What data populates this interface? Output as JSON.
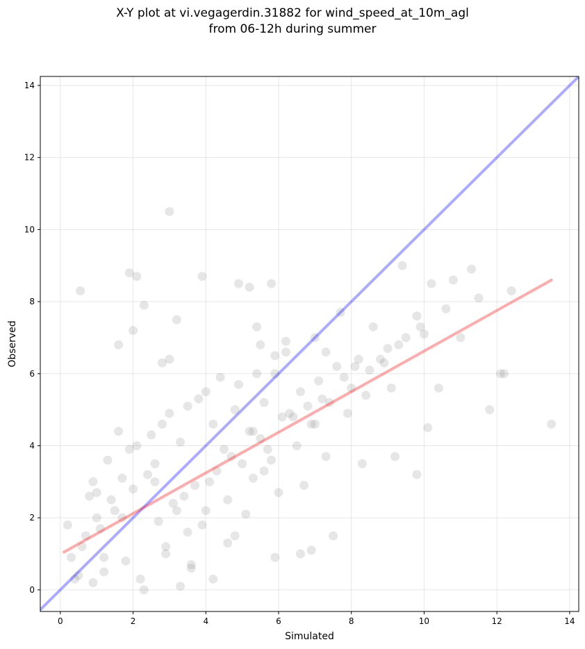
{
  "chart_data": {
    "type": "scatter",
    "title_line1": "X-Y plot at vi.vegagerdin.31882 for wind_speed_at_10m_agl",
    "title_line2": "from 06-12h during summer",
    "xlabel": "Simulated",
    "ylabel": "Observed",
    "xlim": [
      -0.55,
      14.25
    ],
    "ylim": [
      -0.6,
      14.25
    ],
    "x_ticks": [
      0,
      2,
      4,
      6,
      8,
      10,
      12,
      14
    ],
    "y_ticks": [
      0,
      2,
      4,
      6,
      8,
      10,
      12,
      14
    ],
    "grid": true,
    "point_color": "#808080",
    "series": [
      {
        "name": "",
        "x": [
          0.55,
          3.0,
          1.9,
          2.1,
          3.9,
          1.6,
          2.0,
          2.3,
          2.8,
          3.2,
          3.0,
          4.9,
          5.2,
          5.4,
          5.5,
          5.8,
          5.9,
          6.2,
          7.0,
          7.3,
          7.7,
          8.1,
          8.6,
          8.9,
          9.4,
          9.8,
          10.2,
          10.6,
          10.8,
          11.3,
          11.5,
          11.0,
          12.1,
          12.4,
          12.2,
          11.8,
          13.5,
          9.8,
          9.2,
          10.1,
          10.4,
          6.6,
          7.5,
          6.9,
          8.3,
          1.0,
          0.6,
          1.4,
          0.2,
          1.7,
          2.6,
          3.3,
          4.2,
          4.8,
          5.3,
          5.6,
          5.9,
          6.1,
          6.6,
          7.2,
          7.8,
          8.2,
          4.0,
          3.5,
          2.9,
          1.2,
          0.9,
          0.4,
          0.3,
          0.7,
          1.5,
          2.0,
          2.4,
          3.1,
          3.7,
          4.3,
          4.5,
          5.0,
          5.5,
          6.3,
          6.9,
          7.4,
          8.0,
          8.5,
          9.0,
          9.5,
          3.6,
          4.6,
          5.1,
          6.0,
          2.2,
          1.8,
          1.1,
          0.8,
          2.7,
          3.4,
          4.1,
          4.7,
          5.2,
          5.7,
          6.4,
          6.8,
          7.1,
          7.6,
          8.8,
          9.3,
          9.9,
          10.0,
          2.5,
          3.0,
          3.8,
          4.4,
          5.4,
          6.2,
          1.3,
          1.6,
          2.1,
          2.6,
          3.2,
          3.9,
          4.6,
          5.3,
          5.8,
          6.5,
          7.0,
          7.9,
          8.4,
          9.1,
          1.0,
          1.9,
          2.8,
          3.5,
          4.0,
          4.9,
          5.6,
          6.7,
          7.3,
          0.5,
          1.2,
          2.3,
          3.3,
          4.2,
          0.9,
          1.7,
          2.9,
          3.6,
          4.8,
          5.9
        ],
        "y": [
          8.3,
          10.5,
          8.8,
          8.7,
          8.7,
          6.8,
          7.2,
          7.9,
          6.3,
          7.5,
          6.4,
          8.5,
          8.4,
          7.3,
          6.8,
          8.5,
          6.5,
          6.9,
          7.0,
          6.6,
          7.7,
          6.2,
          7.3,
          6.3,
          9.0,
          7.6,
          8.5,
          7.8,
          8.6,
          8.9,
          8.1,
          7.0,
          6.0,
          8.3,
          6.0,
          5.0,
          4.6,
          3.2,
          3.7,
          4.5,
          5.6,
          1.0,
          1.5,
          1.1,
          3.5,
          2.0,
          1.2,
          2.5,
          1.8,
          3.1,
          3.5,
          4.1,
          4.6,
          5.0,
          4.4,
          5.2,
          6.0,
          4.8,
          5.5,
          5.3,
          5.9,
          6.4,
          2.2,
          1.6,
          1.0,
          0.5,
          0.2,
          0.3,
          0.9,
          1.5,
          2.2,
          2.8,
          3.2,
          2.4,
          2.9,
          3.3,
          3.9,
          3.5,
          4.2,
          4.9,
          4.6,
          5.2,
          5.6,
          6.1,
          6.7,
          7.0,
          0.6,
          1.3,
          2.1,
          2.7,
          0.3,
          0.8,
          1.7,
          2.6,
          1.9,
          2.6,
          3.0,
          3.7,
          4.4,
          3.9,
          4.8,
          5.1,
          5.8,
          6.2,
          6.4,
          6.8,
          7.3,
          7.1,
          4.3,
          4.9,
          5.3,
          5.9,
          6.0,
          6.6,
          3.6,
          4.4,
          4.0,
          3.0,
          2.2,
          1.8,
          2.5,
          3.1,
          3.6,
          4.0,
          4.6,
          4.9,
          5.4,
          5.6,
          2.7,
          3.9,
          4.6,
          5.1,
          5.5,
          5.7,
          3.3,
          2.9,
          3.7,
          0.4,
          0.9,
          0.0,
          0.1,
          0.3,
          3.0,
          2.0,
          1.2,
          0.7,
          1.5,
          0.9
        ]
      }
    ],
    "lines": [
      {
        "name": "",
        "x": [
          -0.55,
          14.25
        ],
        "y": [
          -0.55,
          14.25
        ],
        "color": "#0000ff"
      },
      {
        "name": "",
        "x": [
          0.1,
          13.5
        ],
        "y": [
          1.05,
          8.6
        ],
        "color": "#ff0000"
      }
    ]
  }
}
